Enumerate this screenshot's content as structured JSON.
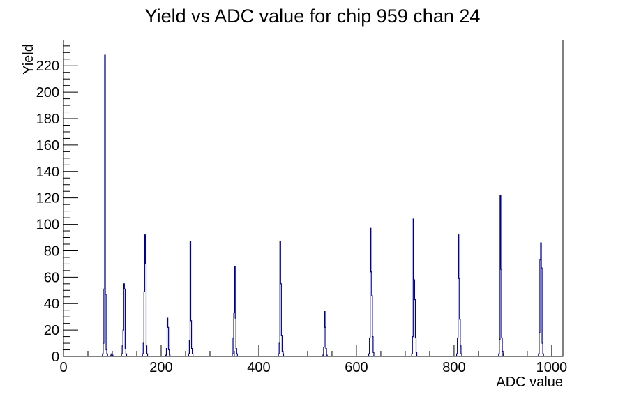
{
  "title": "Yield vs ADC value for chip 959 chan 24",
  "chart_data": {
    "type": "bar",
    "subtype": "root-step-histogram",
    "title": "Yield vs ADC value for chip 959 chan 24",
    "xlabel": "ADC value",
    "ylabel": "Yield",
    "xlim": [
      0,
      1023
    ],
    "ylim": [
      0,
      239.4
    ],
    "x_major_ticks": [
      0,
      200,
      400,
      600,
      800,
      1000
    ],
    "x_minor_tick_step": 50,
    "y_major_ticks": [
      0,
      20,
      40,
      60,
      80,
      100,
      120,
      140,
      160,
      180,
      200,
      220
    ],
    "y_minor_tick_step": 5,
    "grid": false,
    "legend": false,
    "line_color": "#000099",
    "frame_color": "#000000",
    "background_color": "#ffffff",
    "bin_width_adc": 1.5,
    "spikes": [
      {
        "adc": 85,
        "peak": 228,
        "bins": [
          2,
          10,
          51,
          228,
          47,
          5,
          2
        ]
      },
      {
        "adc": 99,
        "peak": 2,
        "bins": [
          1,
          2,
          1
        ]
      },
      {
        "adc": 124,
        "peak": 55,
        "bins": [
          2,
          8,
          20,
          55,
          51,
          6,
          2
        ]
      },
      {
        "adc": 167,
        "peak": 92,
        "bins": [
          2,
          10,
          49,
          92,
          70,
          8,
          2
        ]
      },
      {
        "adc": 213,
        "peak": 29,
        "bins": [
          1,
          6,
          29,
          22,
          5,
          1
        ]
      },
      {
        "adc": 260,
        "peak": 87,
        "bins": [
          2,
          12,
          87,
          27,
          6,
          2
        ]
      },
      {
        "adc": 351,
        "peak": 68,
        "bins": [
          2,
          14,
          33,
          68,
          29,
          6,
          2
        ]
      },
      {
        "adc": 444,
        "peak": 87,
        "bins": [
          2,
          10,
          87,
          55,
          16,
          4,
          2
        ]
      },
      {
        "adc": 535,
        "peak": 34,
        "bins": [
          1,
          7,
          34,
          22,
          6,
          1
        ]
      },
      {
        "adc": 629,
        "peak": 97,
        "bins": [
          2,
          14,
          97,
          64,
          46,
          15,
          3
        ]
      },
      {
        "adc": 717,
        "peak": 104,
        "bins": [
          2,
          15,
          104,
          58,
          43,
          14,
          3
        ]
      },
      {
        "adc": 809,
        "peak": 92,
        "bins": [
          2,
          14,
          92,
          59,
          28,
          8,
          2
        ]
      },
      {
        "adc": 895,
        "peak": 122,
        "bins": [
          2,
          13,
          122,
          66,
          14,
          4,
          2
        ]
      },
      {
        "adc": 978,
        "peak": 86,
        "bins": [
          2,
          18,
          73,
          86,
          67,
          10,
          2
        ]
      }
    ]
  }
}
